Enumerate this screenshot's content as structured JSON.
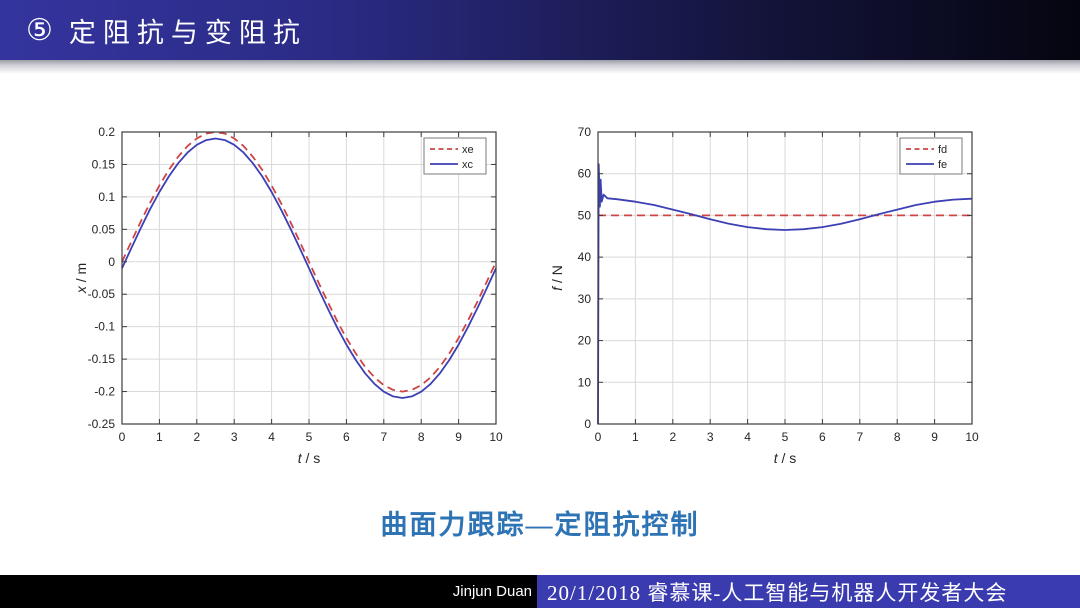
{
  "header": {
    "bullet_number": "⑤",
    "title": "定阻抗与变阻抗"
  },
  "caption": "曲面力跟踪—定阻抗控制",
  "footer": {
    "author": "Jinjun Duan",
    "event": "20/1/2018 睿慕课-人工智能与机器人开发者大会"
  },
  "colors": {
    "header_gradient_start": "#34349e",
    "header_gradient_end": "#050510",
    "footer_black": "#000000",
    "footer_blue": "#3b3bb0",
    "caption_blue": "#2e74b5",
    "curve_red": "#cd4545",
    "curve_blue": "#3c40b4",
    "grid_gray": "#d9d9d9",
    "axis_dark": "#3c3c3c"
  },
  "chart_data": [
    {
      "type": "line",
      "title": "",
      "xlabel": "t / s",
      "ylabel": "x / m",
      "xlim": [
        0,
        10
      ],
      "ylim": [
        -0.25,
        0.2
      ],
      "xticks": [
        0,
        1,
        2,
        3,
        4,
        5,
        6,
        7,
        8,
        9,
        10
      ],
      "xtick_labels": [
        "0",
        "1",
        "2",
        "3",
        "4",
        "5",
        "6",
        "7",
        "8",
        "9",
        "10"
      ],
      "yticks": [
        -0.25,
        -0.2,
        -0.15,
        -0.1,
        -0.05,
        0,
        0.05,
        0.1,
        0.15,
        0.2
      ],
      "ytick_labels": [
        "-0.25",
        "-0.2",
        "-0.15",
        "-0.1",
        "-0.05",
        "0",
        "0.05",
        "0.1",
        "0.15",
        "0.2"
      ],
      "grid": true,
      "legend_position": "top-right",
      "series": [
        {
          "name": "xe",
          "color": "#cd4545",
          "style": "dashed",
          "x": [
            0,
            0.25,
            0.5,
            0.75,
            1,
            1.25,
            1.5,
            1.75,
            2,
            2.25,
            2.5,
            2.75,
            3,
            3.25,
            3.5,
            3.75,
            4,
            4.25,
            4.5,
            4.75,
            5,
            5.25,
            5.5,
            5.75,
            6,
            6.25,
            6.5,
            6.75,
            7,
            7.25,
            7.5,
            7.75,
            8,
            8.25,
            8.5,
            8.75,
            9,
            9.25,
            9.5,
            9.75,
            10
          ],
          "y": [
            0,
            0.0313,
            0.0618,
            0.0908,
            0.1176,
            0.1414,
            0.1618,
            0.1782,
            0.1902,
            0.1975,
            0.2,
            0.1975,
            0.1902,
            0.1782,
            0.1618,
            0.1414,
            0.1176,
            0.0908,
            0.0618,
            0.0313,
            0,
            -0.0313,
            -0.0618,
            -0.0908,
            -0.1176,
            -0.1414,
            -0.1618,
            -0.1782,
            -0.1902,
            -0.1975,
            -0.2,
            -0.1975,
            -0.1902,
            -0.1782,
            -0.1618,
            -0.1414,
            -0.1176,
            -0.0908,
            -0.0618,
            -0.0313,
            0
          ]
        },
        {
          "name": "xc",
          "color": "#3c40b4",
          "style": "solid",
          "x": [
            0,
            0.25,
            0.5,
            0.75,
            1,
            1.25,
            1.5,
            1.75,
            2,
            2.25,
            2.5,
            2.75,
            3,
            3.25,
            3.5,
            3.75,
            4,
            4.25,
            4.5,
            4.75,
            5,
            5.25,
            5.5,
            5.75,
            6,
            6.25,
            6.5,
            6.75,
            7,
            7.25,
            7.5,
            7.75,
            8,
            8.25,
            8.5,
            8.75,
            9,
            9.25,
            9.5,
            9.75,
            10
          ],
          "y": [
            -0.01,
            0.0213,
            0.0518,
            0.0808,
            0.1076,
            0.1314,
            0.1518,
            0.1682,
            0.1802,
            0.1875,
            0.19,
            0.1875,
            0.1802,
            0.1682,
            0.1518,
            0.1314,
            0.1076,
            0.0808,
            0.0518,
            0.0213,
            -0.01,
            -0.0413,
            -0.0718,
            -0.1008,
            -0.1276,
            -0.1514,
            -0.1718,
            -0.1882,
            -0.2002,
            -0.2075,
            -0.21,
            -0.2075,
            -0.2002,
            -0.1882,
            -0.1718,
            -0.1514,
            -0.1276,
            -0.1008,
            -0.0718,
            -0.0413,
            -0.01
          ]
        }
      ]
    },
    {
      "type": "line",
      "title": "",
      "xlabel": "t / s",
      "ylabel": "f / N",
      "xlim": [
        0,
        10
      ],
      "ylim": [
        0,
        70
      ],
      "xticks": [
        0,
        1,
        2,
        3,
        4,
        5,
        6,
        7,
        8,
        9,
        10
      ],
      "xtick_labels": [
        "0",
        "1",
        "2",
        "3",
        "4",
        "5",
        "6",
        "7",
        "8",
        "9",
        "10"
      ],
      "yticks": [
        0,
        10,
        20,
        30,
        40,
        50,
        60,
        70
      ],
      "ytick_labels": [
        "0",
        "10",
        "20",
        "30",
        "40",
        "50",
        "60",
        "70"
      ],
      "grid": true,
      "legend_position": "top-right",
      "series": [
        {
          "name": "fd",
          "color": "#cd4545",
          "style": "dashed",
          "x": [
            0,
            10
          ],
          "y": [
            50,
            50
          ]
        },
        {
          "name": "fe",
          "color": "#3c40b4",
          "style": "solid",
          "x": [
            0,
            0.02,
            0.05,
            0.07,
            0.1,
            0.15,
            0.25,
            0.5,
            1,
            1.5,
            2,
            2.5,
            3,
            3.5,
            4,
            4.5,
            5,
            5.5,
            6,
            6.5,
            7,
            7.5,
            8,
            8.5,
            9,
            9.5,
            10
          ],
          "y": [
            0,
            62.3,
            52.1,
            58.6,
            53.3,
            55.0,
            54.1,
            53.9,
            53.3,
            52.5,
            51.4,
            50.3,
            49.1,
            48.0,
            47.2,
            46.7,
            46.5,
            46.7,
            47.2,
            48.0,
            49.1,
            50.3,
            51.4,
            52.5,
            53.3,
            53.8,
            54.0
          ]
        }
      ]
    }
  ]
}
